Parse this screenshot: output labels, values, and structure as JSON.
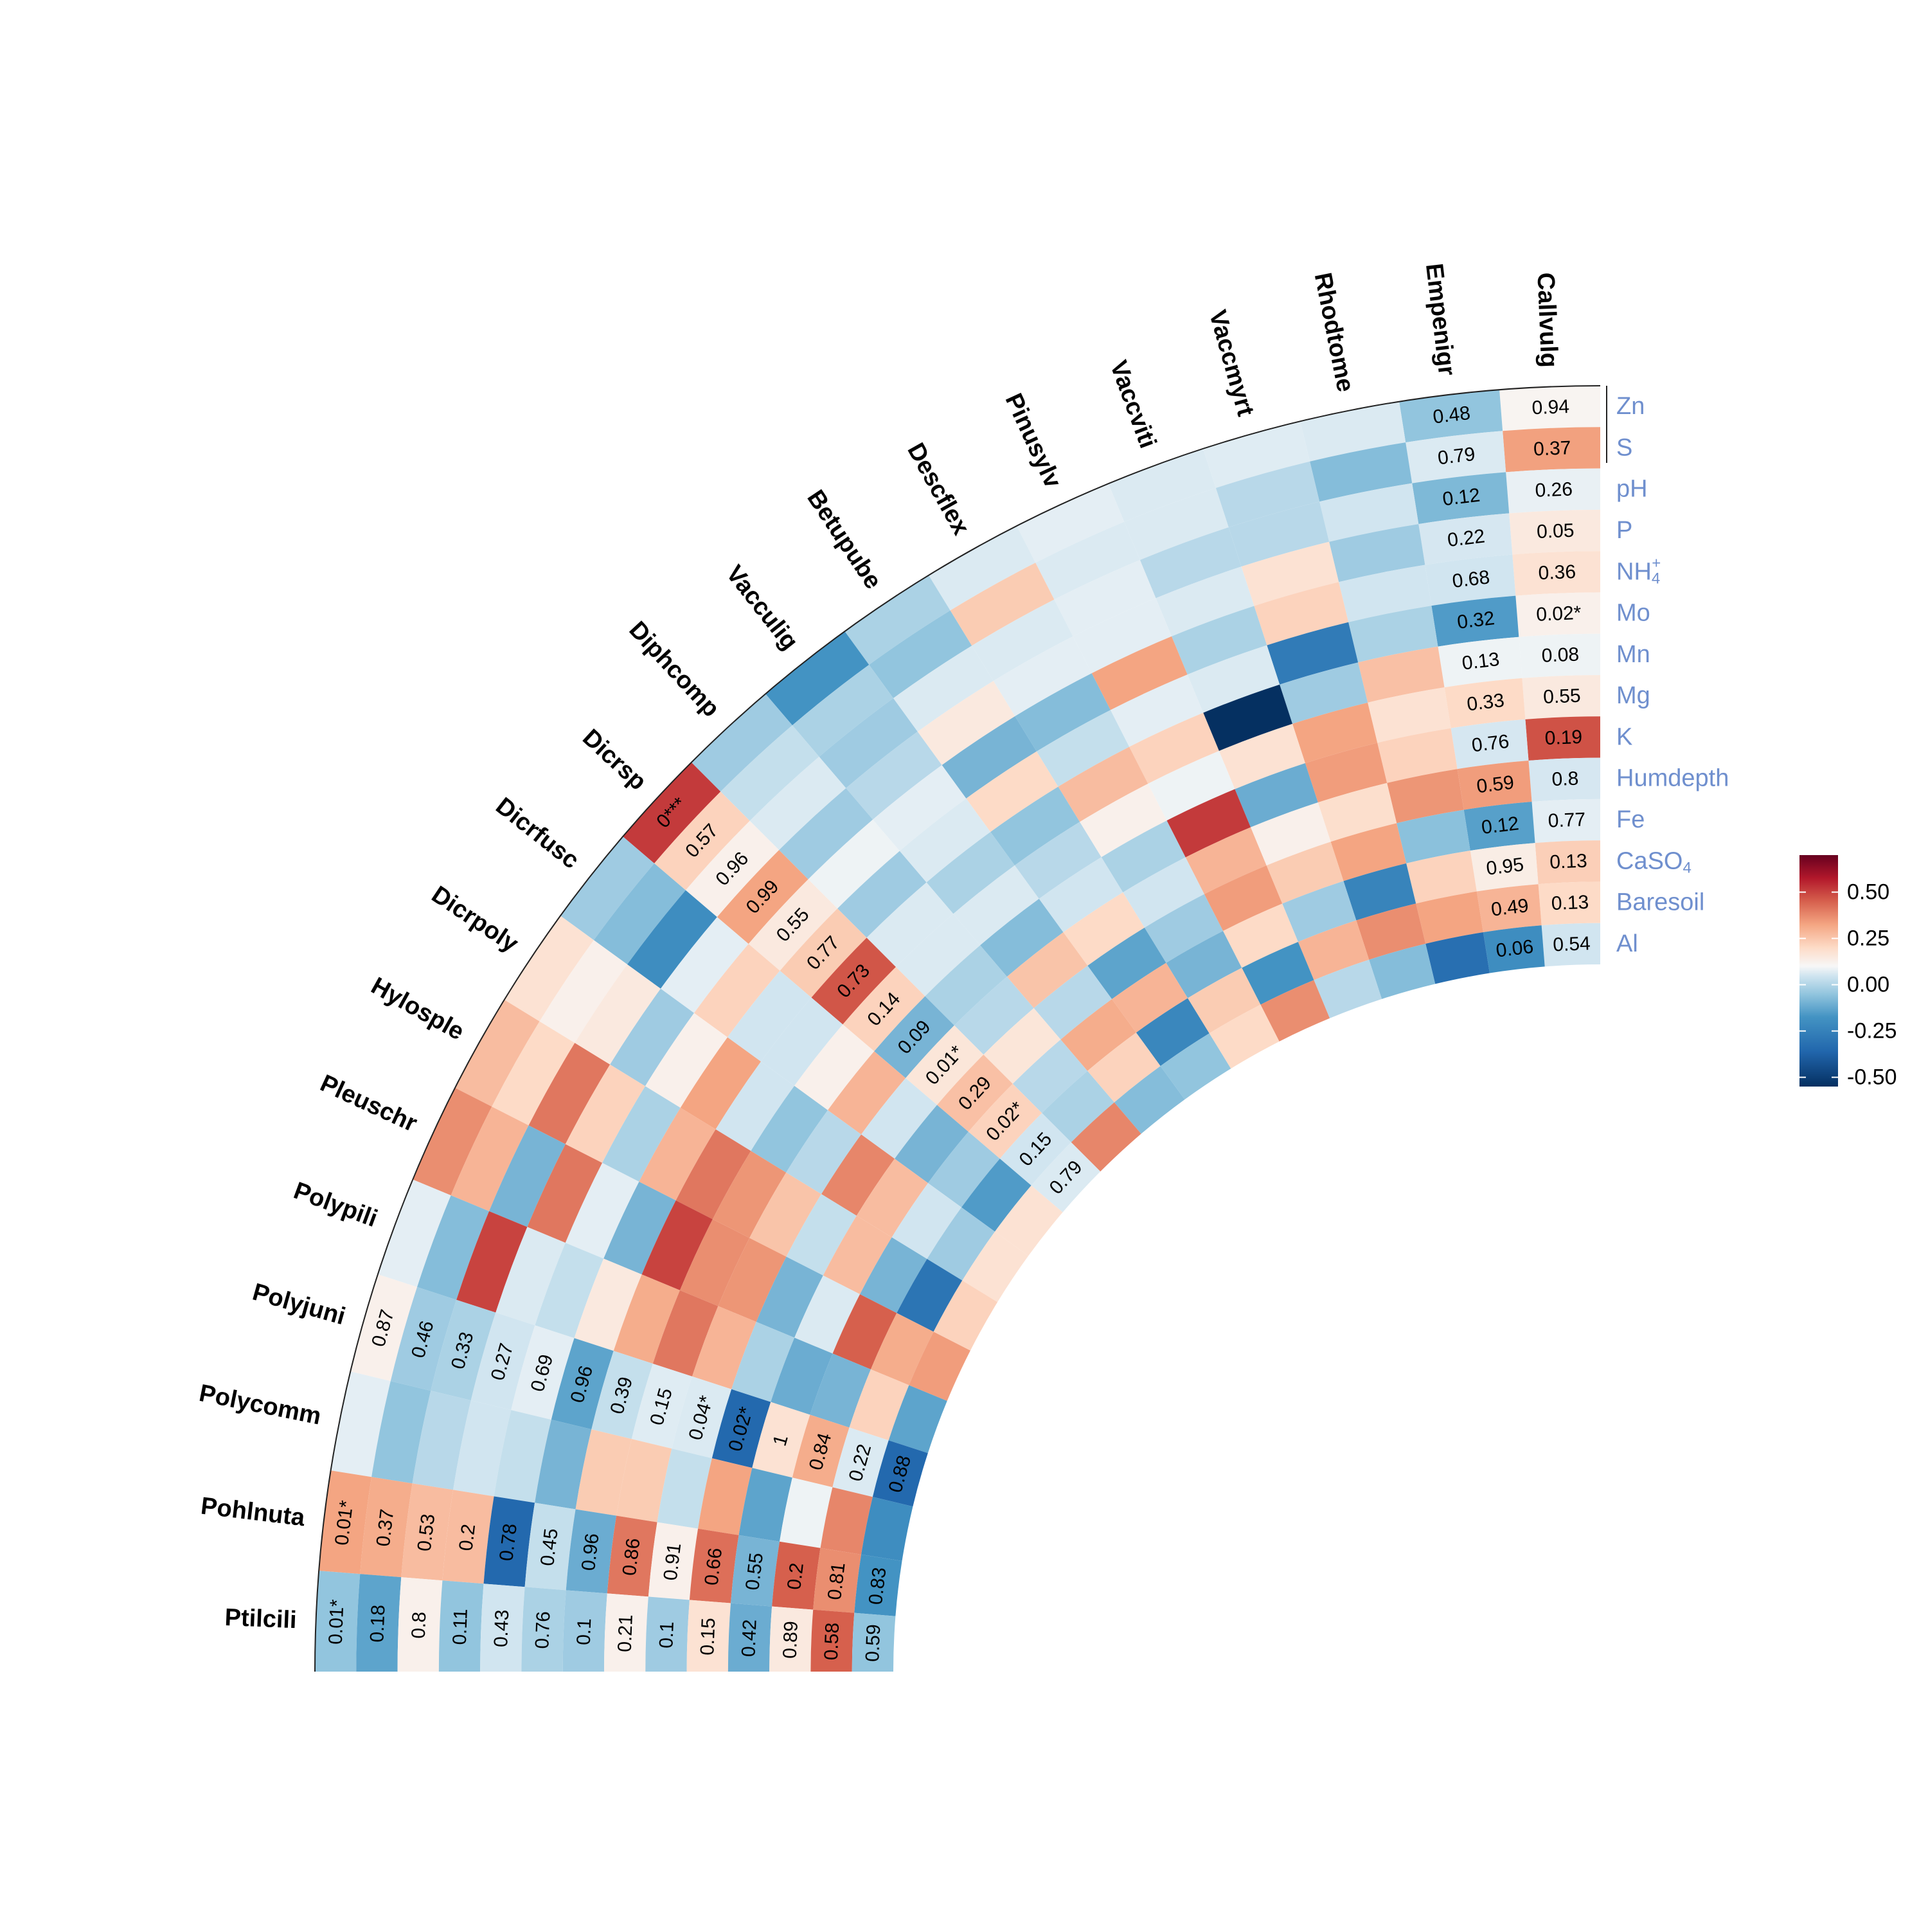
{
  "chart_data": {
    "type": "heatmap",
    "title": "",
    "layout": "polar quarter-ring correlation heatmap",
    "species": [
      "Callvulg",
      "Empenigr",
      "Rhodtome",
      "Vaccmyrt",
      "Vaccviti",
      "Pinusylv",
      "Descflex",
      "Betupube",
      "Vacculig",
      "Diphcomp",
      "Dicrsp",
      "Dicrfusc",
      "Dicrpoly",
      "Hylosple",
      "Pleuschr",
      "Polypili",
      "Polyjuni",
      "Polycomm",
      "Pohlnuta",
      "Ptilcili"
    ],
    "variables": [
      "Zn",
      "S",
      "pH",
      "P",
      "NH4+",
      "Mo",
      "Mn",
      "Mg",
      "K",
      "Humdepth",
      "Fe",
      "CaSO4",
      "Baresoil",
      "Al"
    ],
    "variable_labels": [
      {
        "base": "Zn",
        "sup": "",
        "sub": ""
      },
      {
        "base": "S",
        "sup": "",
        "sub": ""
      },
      {
        "base": "pH",
        "sup": "",
        "sub": ""
      },
      {
        "base": "P",
        "sup": "",
        "sub": ""
      },
      {
        "base": "NH",
        "sup": "+",
        "sub": "4"
      },
      {
        "base": "Mo",
        "sup": "",
        "sub": ""
      },
      {
        "base": "Mn",
        "sup": "",
        "sub": ""
      },
      {
        "base": "Mg",
        "sup": "",
        "sub": ""
      },
      {
        "base": "K",
        "sup": "",
        "sub": ""
      },
      {
        "base": "Humdepth",
        "sup": "",
        "sub": ""
      },
      {
        "base": "Fe",
        "sup": "",
        "sub": ""
      },
      {
        "base": "Ca",
        "sup": "",
        "sub": "4",
        "mid": "SO"
      },
      {
        "base": "Baresoil",
        "sup": "",
        "sub": ""
      },
      {
        "base": "Al",
        "sup": "",
        "sub": ""
      }
    ],
    "correlation": [
      [
        0.01,
        0.23,
        -0.03,
        0.04,
        0.06,
        0.02,
        -0.02,
        0.04,
        0.43,
        -0.07,
        -0.04,
        0.11,
        0.08,
        -0.08
      ],
      [
        -0.18,
        -0.06,
        -0.21,
        -0.07,
        -0.08,
        -0.28,
        -0.02,
        0.08,
        -0.07,
        0.24,
        -0.27,
        0.03,
        0.18,
        -0.32
      ],
      [
        -0.06,
        -0.2,
        -0.08,
        -0.16,
        -0.08,
        -0.14,
        0.15,
        0.06,
        0.1,
        0.26,
        -0.19,
        0.1,
        0.22,
        -0.42
      ],
      [
        -0.05,
        -0.12,
        -0.12,
        0.06,
        0.1,
        -0.38,
        -0.16,
        0.22,
        0.24,
        0.07,
        0.22,
        -0.35,
        0.28,
        -0.2
      ],
      [
        -0.06,
        -0.06,
        -0.12,
        -0.06,
        -0.14,
        -0.06,
        -0.55,
        0.06,
        -0.24,
        0.02,
        0.12,
        -0.16,
        0.18,
        -0.12
      ],
      [
        -0.04,
        -0.06,
        -0.04,
        -0.04,
        0.22,
        -0.04,
        0.1,
        -0.02,
        0.48,
        0.18,
        0.24,
        0.08,
        -0.3,
        0.28
      ],
      [
        -0.06,
        0.12,
        -0.06,
        -0.04,
        -0.2,
        -0.1,
        0.16,
        0.02,
        -0.14,
        -0.08,
        -0.16,
        -0.22,
        0.12,
        0.08
      ],
      [
        -0.14,
        -0.18,
        -0.06,
        0.04,
        -0.22,
        0.08,
        -0.18,
        -0.12,
        -0.08,
        0.08,
        -0.26,
        0.18,
        -0.34,
        -0.18
      ],
      [
        -0.3,
        -0.14,
        -0.16,
        -0.12,
        -0.04,
        -0.06,
        -0.14,
        -0.06,
        -0.2,
        0.14,
        -0.12,
        0.2,
        0.1,
        -0.2
      ],
      [
        -0.16,
        -0.1,
        -0.06,
        -0.16,
        -0.02,
        -0.16,
        -0.06,
        -0.06,
        -0.14,
        -0.12,
        0.05,
        -0.12,
        -0.14,
        0.3
      ],
      [
        0.48,
        0.1,
        0.02,
        0.22,
        0.04,
        0.12,
        0.42,
        0.1,
        -0.22,
        0.05,
        0.15,
        0.1,
        -0.08,
        -0.06
      ],
      [
        -0.16,
        -0.2,
        -0.32,
        -0.04,
        0.1,
        -0.08,
        -0.08,
        0.02,
        0.18,
        -0.08,
        -0.22,
        -0.16,
        -0.28,
        0.06
      ],
      [
        0.06,
        0.02,
        0.04,
        -0.16,
        0.02,
        0.22,
        -0.08,
        -0.18,
        -0.12,
        0.3,
        0.16,
        -0.08,
        -0.16,
        0.06
      ],
      [
        0.16,
        0.08,
        0.34,
        0.1,
        -0.14,
        0.18,
        0.34,
        0.26,
        0.14,
        -0.1,
        0.16,
        -0.22,
        -0.4,
        0.1
      ],
      [
        0.28,
        0.18,
        -0.22,
        0.34,
        -0.04,
        -0.22,
        0.46,
        0.28,
        0.26,
        -0.22,
        -0.06,
        0.4,
        0.2,
        0.24
      ],
      [
        -0.04,
        -0.2,
        0.46,
        -0.06,
        -0.1,
        0.04,
        0.2,
        0.34,
        0.18,
        -0.14,
        -0.24,
        -0.22,
        0.1,
        -0.26
      ],
      [
        0.02,
        -0.16,
        -0.14,
        -0.08,
        -0.04,
        -0.26,
        -0.1,
        -0.05,
        -0.06,
        -0.44,
        0.06,
        0.2,
        -0.06,
        -0.44
      ],
      [
        -0.04,
        -0.18,
        -0.12,
        -0.08,
        -0.1,
        -0.22,
        0.12,
        0.12,
        -0.1,
        0.22,
        -0.26,
        -0.02,
        0.3,
        -0.32
      ],
      [
        0.22,
        0.2,
        0.16,
        0.16,
        -0.44,
        -0.1,
        -0.24,
        0.34,
        0.02,
        0.36,
        -0.22,
        0.4,
        0.28,
        -0.3
      ],
      [
        -0.18,
        -0.26,
        0.02,
        -0.18,
        -0.08,
        -0.14,
        -0.16,
        0.02,
        -0.16,
        0.06,
        -0.24,
        0.04,
        0.4,
        -0.18
      ]
    ],
    "pvalue_labels": {
      "Callvulg": [
        "0.94",
        "0.37",
        "0.26",
        "0.05",
        "0.36",
        "0.02*",
        "0.08",
        "0.55",
        "0.19",
        "0.8",
        "0.77",
        "0.13",
        "0.13",
        "0.54"
      ],
      "Empenigr": [
        "0.48",
        "0.79",
        "0.12",
        "0.22",
        "0.68",
        "0.32",
        "0.13",
        "0.33",
        "0.76",
        "0.59",
        "0.12",
        "0.95",
        "0.49",
        "0.06"
      ],
      "Dicrsp": [
        "0***",
        "0.57",
        "0.96",
        "0.99",
        "0.55",
        "0.77",
        "0.73",
        "0.14",
        "0.09",
        "0.01*",
        "0.29",
        "0.02*",
        "0.15",
        "0.79"
      ],
      "Polyjuni": [
        "0.87",
        "0.46",
        "0.33",
        "0.27",
        "0.69",
        "0.96",
        "0.39",
        "0.15",
        "0.04*",
        "0.02*",
        "1",
        "0.84",
        "0.22",
        "0.88"
      ],
      "Pohlnuta": [
        "0.01*",
        "0.37",
        "0.53",
        "0.2",
        "0.78",
        "0.45",
        "0.96",
        "0.86",
        "0.91",
        "0.66",
        "0.55",
        "0.2",
        "0.81",
        "0.83"
      ],
      "Ptilcili": [
        "0.01*",
        "0.18",
        "0.8",
        "0.11",
        "0.43",
        "0.76",
        "0.1",
        "0.21",
        "0.1",
        "0.15",
        "0.42",
        "0.89",
        "0.58",
        "0.59"
      ]
    },
    "color_scale": {
      "min": -0.55,
      "max": 0.7,
      "low": "#053061",
      "mid": "#f7f7f7",
      "high": "#67001f",
      "ticks": [
        "0.50",
        "0.25",
        "0.00",
        "-0.25",
        "-0.50"
      ],
      "tick_values": [
        0.5,
        0.25,
        0,
        -0.25,
        -0.5
      ]
    },
    "colors": {
      "species_label": "#000000",
      "variable_label": "#6f8fce",
      "cell_text": "#000000"
    },
    "legend_position": "right"
  }
}
